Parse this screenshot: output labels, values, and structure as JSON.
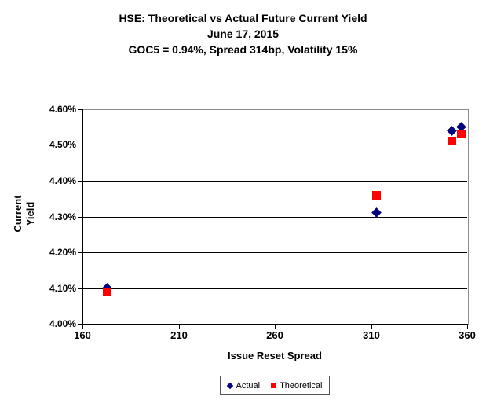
{
  "title": {
    "line1": "HSE: Theoretical vs Actual Future Current Yield",
    "line2": "June 17, 2015",
    "line3": "GOC5 = 0.94%, Spread 314bp, Volatility 15%"
  },
  "colors": {
    "actual": "#000080",
    "theoretical": "#FF0000",
    "gridline": "#000000",
    "plot_border": "#8c8c8c"
  },
  "chart_data": {
    "type": "scatter",
    "title": "HSE: Theoretical vs Actual Future Current Yield",
    "subtitle": "June 17, 2015",
    "subtitle2": "GOC5 = 0.94%, Spread 314bp, Volatility 15%",
    "xlabel": "Issue Reset Spread",
    "ylabel": "Current Yield",
    "xlim": [
      160,
      360
    ],
    "ylim": [
      4.0,
      4.6
    ],
    "grid": "horizontal",
    "legend_position": "bottom-center",
    "xticks": [
      {
        "v": 160,
        "label": "160"
      },
      {
        "v": 210,
        "label": "210"
      },
      {
        "v": 260,
        "label": "260"
      },
      {
        "v": 310,
        "label": "310"
      },
      {
        "v": 360,
        "label": "360"
      }
    ],
    "yticks": [
      {
        "v": 4.0,
        "label": "4.00%"
      },
      {
        "v": 4.1,
        "label": "4.10%"
      },
      {
        "v": 4.2,
        "label": "4.20%"
      },
      {
        "v": 4.3,
        "label": "4.30%"
      },
      {
        "v": 4.4,
        "label": "4.40%"
      },
      {
        "v": 4.5,
        "label": "4.50%"
      },
      {
        "v": 4.6,
        "label": "4.60%"
      }
    ],
    "series": [
      {
        "name": "Actual",
        "marker": "diamond",
        "color": "#000080",
        "points": [
          {
            "x": 173,
            "y": 4.1
          },
          {
            "x": 313,
            "y": 4.31
          },
          {
            "x": 352,
            "y": 4.54
          },
          {
            "x": 357,
            "y": 4.55
          }
        ]
      },
      {
        "name": "Theoretical",
        "marker": "square",
        "color": "#FF0000",
        "points": [
          {
            "x": 173,
            "y": 4.09
          },
          {
            "x": 313,
            "y": 4.36
          },
          {
            "x": 352,
            "y": 4.51
          },
          {
            "x": 357,
            "y": 4.53
          }
        ]
      }
    ]
  }
}
